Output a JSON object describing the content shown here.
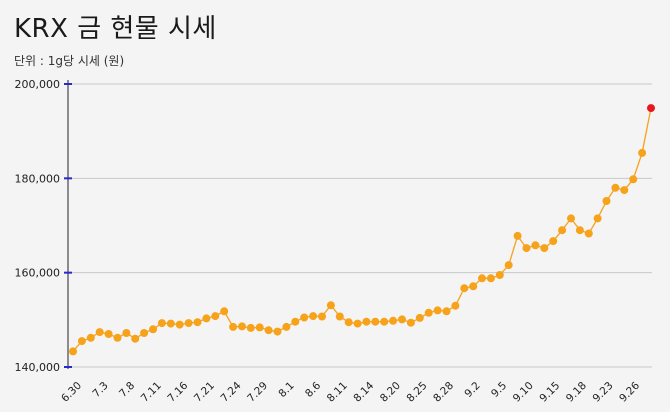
{
  "header": {
    "title": "KRX 금 현물 시세",
    "unit": "단위 : 1g당 시세 (원)"
  },
  "chart_data": {
    "type": "line",
    "title": "KRX 금 현물 시세",
    "subtitle": "단위 : 1g당 시세 (원)",
    "xlabel": "",
    "ylabel": "",
    "ylim": [
      140000,
      200000
    ],
    "y_ticks": [
      140000,
      160000,
      180000,
      200000
    ],
    "y_tick_labels": [
      "140,000",
      "160,000",
      "180,000",
      "200,000"
    ],
    "grid": true,
    "colors": {
      "line": "#f7a21b",
      "point": "#f7a21b",
      "last_point": "#e8191e",
      "grid": "#c8c8c8",
      "axis_tick": "#2a2ac8"
    },
    "x_tick_labels": [
      "6.30",
      "7.3",
      "7.8",
      "7.11",
      "7.16",
      "7.21",
      "7.24",
      "7.29",
      "8.1",
      "8.6",
      "8.11",
      "8.14",
      "8.20",
      "8.25",
      "8.28",
      "9.2",
      "9.5",
      "9.10",
      "9.15",
      "9.18",
      "9.23",
      "9.26"
    ],
    "values": [
      143300,
      145500,
      146200,
      147400,
      147000,
      146200,
      147200,
      146000,
      147200,
      148000,
      149300,
      149200,
      149000,
      149300,
      149500,
      150300,
      150800,
      151800,
      148500,
      148600,
      148300,
      148400,
      147800,
      147500,
      148500,
      149600,
      150500,
      150800,
      150700,
      153100,
      150700,
      149500,
      149200,
      149600,
      149600,
      149600,
      149800,
      150100,
      149400,
      150400,
      151500,
      152000,
      151800,
      153000,
      156700,
      157100,
      158800,
      158800,
      159500,
      161600,
      167800,
      165200,
      165800,
      165200,
      166700,
      169000,
      171500,
      169000,
      168300,
      171500,
      175200,
      178000,
      177500,
      179800,
      185400,
      194900
    ]
  }
}
